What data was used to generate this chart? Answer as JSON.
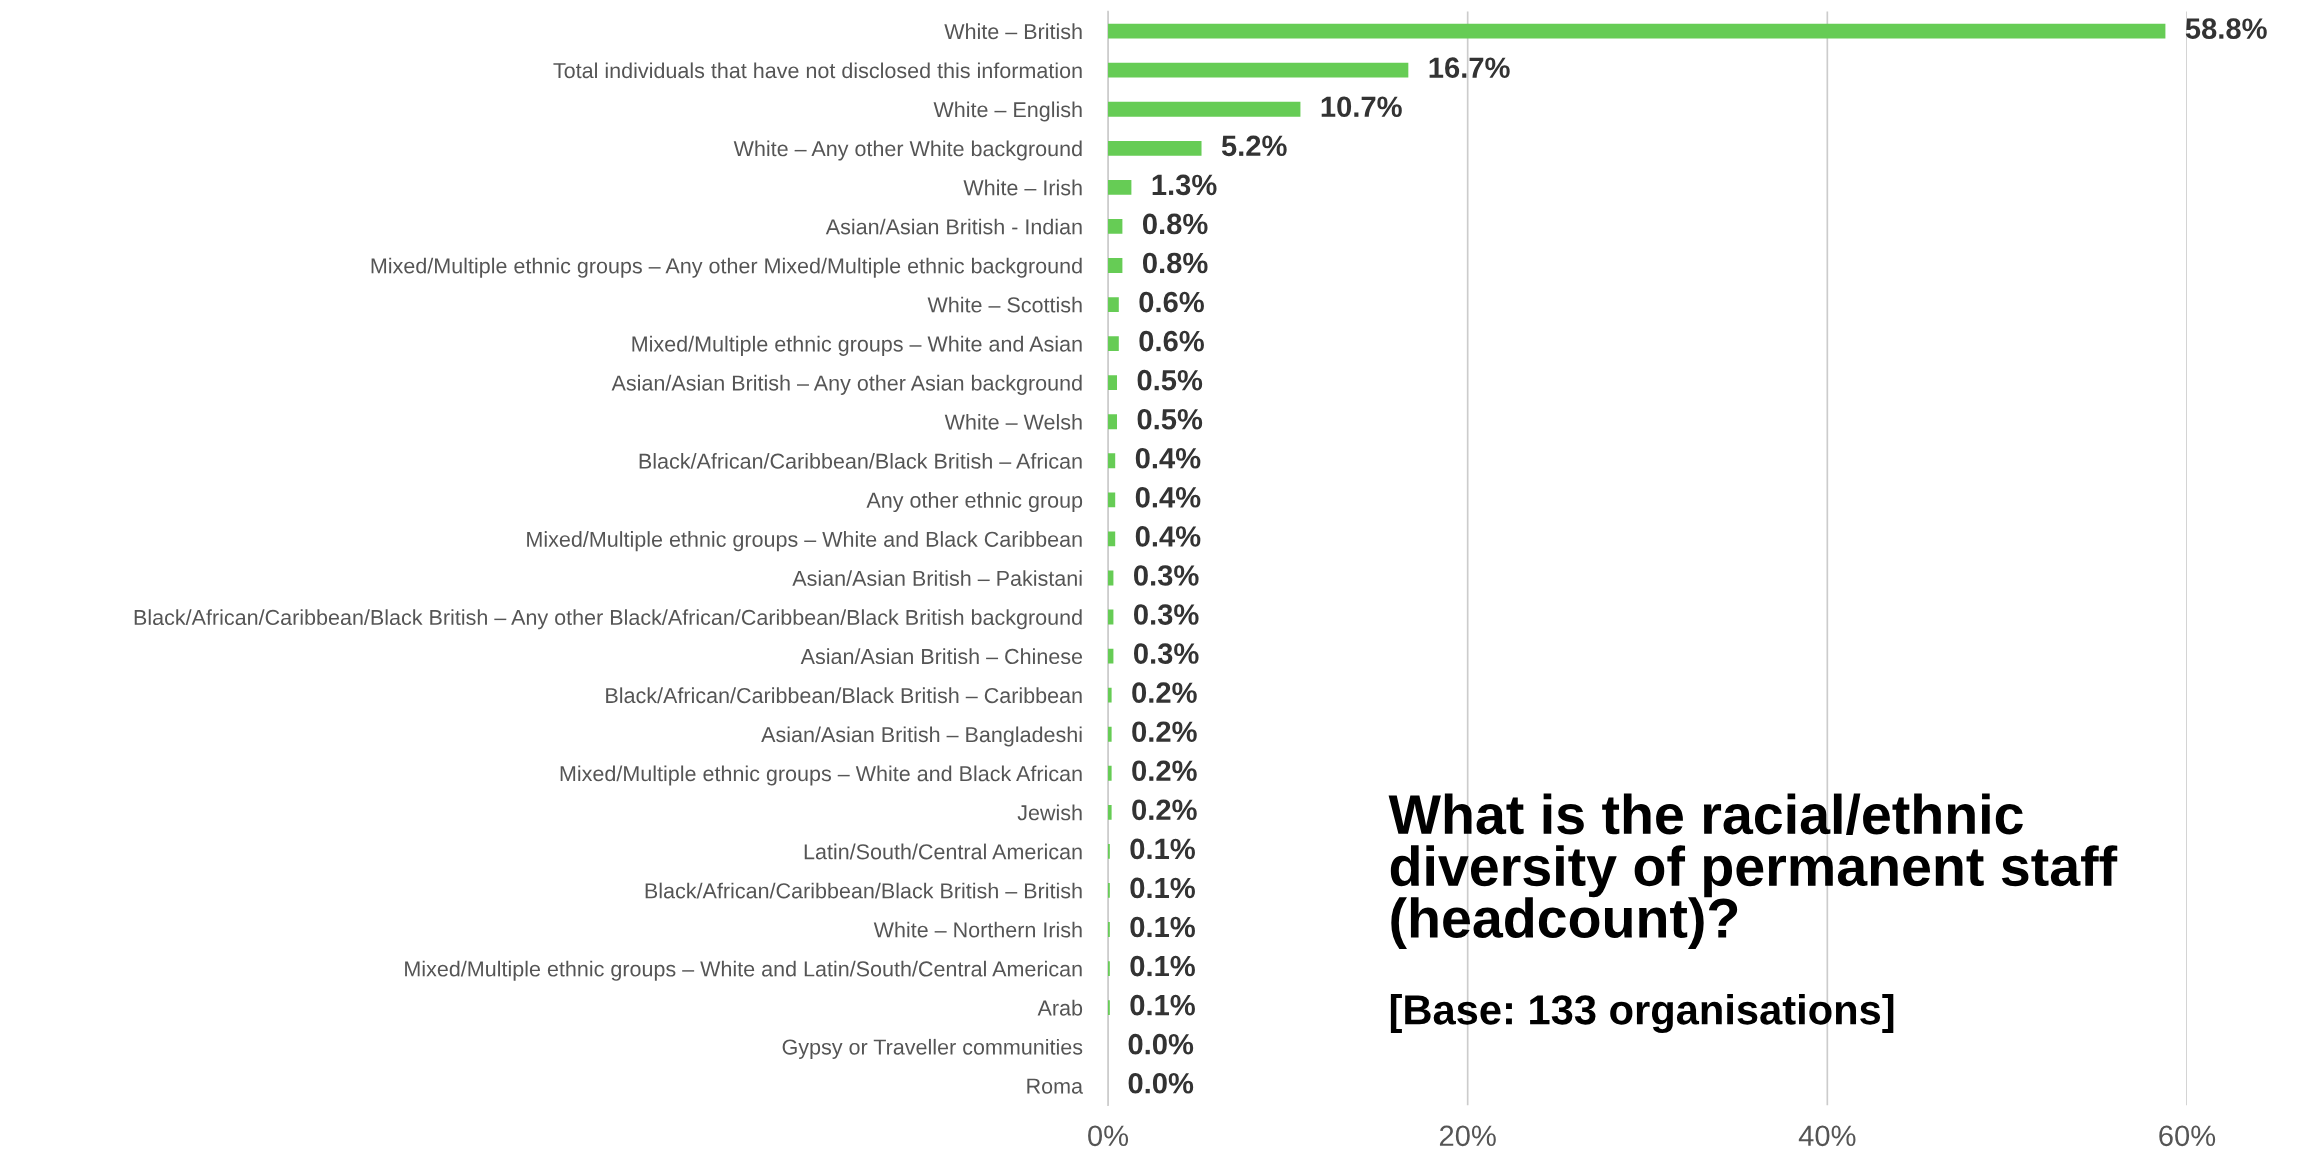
{
  "chart_data": {
    "type": "bar",
    "orientation": "horizontal",
    "title": "What is the racial/ethnic diversity of permanent staff (headcount)?",
    "subtitle": "[Base: 133 organisations]",
    "categories": [
      "White – British",
      "Total individuals that have not disclosed this information",
      "White – English",
      "White – Any other White background",
      "White – Irish",
      "Asian/Asian British - Indian",
      "Mixed/Multiple ethnic groups – Any other Mixed/Multiple ethnic background",
      "White – Scottish",
      "Mixed/Multiple ethnic groups – White and Asian",
      "Asian/Asian British – Any other Asian background",
      "White – Welsh",
      "Black/African/Caribbean/Black British – African",
      "Any other ethnic group",
      "Mixed/Multiple ethnic groups – White and Black Caribbean",
      "Asian/Asian British – Pakistani",
      "Black/African/Caribbean/Black British – Any other Black/African/Caribbean/Black British background",
      "Asian/Asian British – Chinese",
      "Black/African/Caribbean/Black British – Caribbean",
      "Asian/Asian British – Bangladeshi",
      "Mixed/Multiple ethnic groups – White and Black African",
      "Jewish",
      "Latin/South/Central American",
      "Black/African/Caribbean/Black British – British",
      "White – Northern Irish",
      "Mixed/Multiple ethnic groups – White and Latin/South/Central American",
      "Arab",
      "Gypsy or Traveller communities",
      "Roma"
    ],
    "values": [
      58.8,
      16.7,
      10.7,
      5.2,
      1.3,
      0.8,
      0.8,
      0.6,
      0.6,
      0.5,
      0.5,
      0.4,
      0.4,
      0.4,
      0.3,
      0.3,
      0.3,
      0.2,
      0.2,
      0.2,
      0.2,
      0.1,
      0.1,
      0.1,
      0.1,
      0.1,
      0.0,
      0.0
    ],
    "value_labels": [
      "58.8%",
      "16.7%",
      "10.7%",
      "5.2%",
      "1.3%",
      "0.8%",
      "0.8%",
      "0.6%",
      "0.6%",
      "0.5%",
      "0.5%",
      "0.4%",
      "0.4%",
      "0.4%",
      "0.3%",
      "0.3%",
      "0.3%",
      "0.2%",
      "0.2%",
      "0.2%",
      "0.2%",
      "0.1%",
      "0.1%",
      "0.1%",
      "0.1%",
      "0.1%",
      "0.0%",
      "0.0%"
    ],
    "color": "#66cc55",
    "xlim": [
      0,
      60
    ],
    "xticks": [
      {
        "value": 0,
        "label": "0%"
      },
      {
        "value": 20,
        "label": "20%"
      },
      {
        "value": 40,
        "label": "40%"
      },
      {
        "value": 60,
        "label": "60%"
      }
    ],
    "grid": "x"
  }
}
